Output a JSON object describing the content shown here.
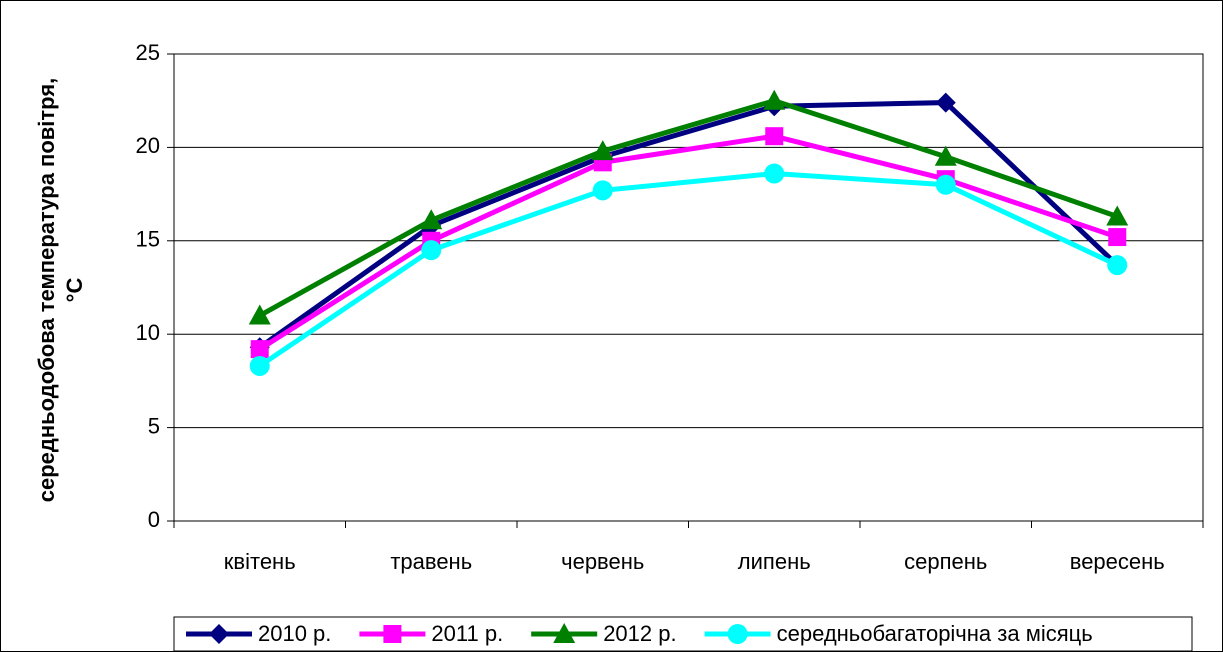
{
  "chart_data": {
    "type": "line",
    "y_label": [
      "середньодобова температура повітря,",
      "°C"
    ],
    "categories": [
      "квітень",
      "травень",
      "червень",
      "липень",
      "серпень",
      "вересень"
    ],
    "series": [
      {
        "name": "2010 р.",
        "color": "#000080",
        "marker": "diamond",
        "values": [
          9.3,
          15.8,
          19.5,
          22.2,
          22.4,
          13.7
        ]
      },
      {
        "name": "2011 р.",
        "color": "#ff00ff",
        "marker": "square",
        "values": [
          9.2,
          15.0,
          19.2,
          20.6,
          18.3,
          15.2
        ]
      },
      {
        "name": "2012 р.",
        "color": "#008000",
        "marker": "triangle",
        "values": [
          11.0,
          16.1,
          19.8,
          22.5,
          19.5,
          16.3
        ]
      },
      {
        "name": "середньобагаторічна за місяць",
        "color": "#00ffff",
        "marker": "circle",
        "values": [
          8.3,
          14.5,
          17.7,
          18.6,
          18.0,
          13.7
        ]
      }
    ],
    "ylim": [
      0,
      25
    ],
    "yticks": [
      0,
      5,
      10,
      15,
      20,
      25
    ],
    "grid": true,
    "legend": "bottom"
  }
}
